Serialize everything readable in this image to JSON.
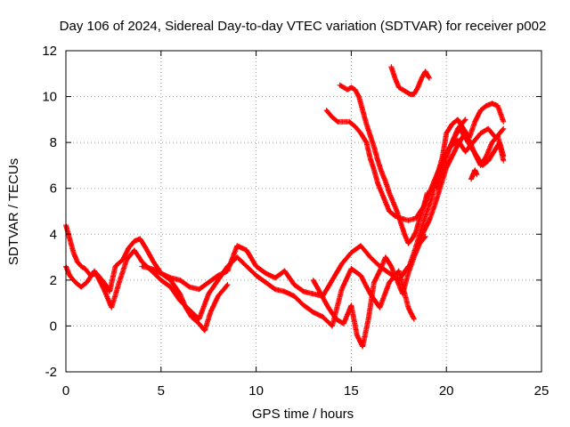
{
  "chart_data": {
    "type": "scatter",
    "title": "Day 106 of 2024, Sidereal Day-to-day VTEC variation (SDTVAR) for receiver p002",
    "xlabel": "GPS time / hours",
    "ylabel": "SDTVAR / TECUs",
    "xlim": [
      0,
      25
    ],
    "ylim": [
      -2,
      12
    ],
    "xticks": [
      "0",
      "5",
      "10",
      "15",
      "20",
      "25"
    ],
    "yticks": [
      "-2",
      "0",
      "2",
      "4",
      "6",
      "8",
      "10",
      "12"
    ],
    "grid": true,
    "marker": "+",
    "marker_color": "#ff0000",
    "series": [
      {
        "x": [
          0.0,
          0.2,
          0.4,
          0.6,
          0.8,
          1.0,
          1.3,
          1.6,
          2.0,
          2.3,
          2.6,
          3.0,
          3.3,
          3.6,
          3.9,
          4.2,
          4.6,
          5.0,
          5.5,
          6.0,
          6.5,
          7.0,
          7.5,
          8.0,
          8.5,
          9.0,
          9.5,
          10.0,
          10.5,
          11.0,
          11.5,
          12.0,
          12.5,
          13.0,
          13.5,
          14.0,
          14.5,
          15.0,
          15.5,
          16.0,
          16.5,
          17.0,
          17.5,
          18.0
        ],
        "y": [
          4.4,
          3.8,
          3.2,
          2.8,
          2.6,
          2.5,
          2.2,
          2.3,
          1.9,
          1.5,
          2.6,
          2.9,
          3.4,
          3.7,
          3.8,
          3.4,
          2.8,
          2.3,
          2.1,
          2.0,
          1.7,
          1.6,
          1.9,
          2.2,
          2.4,
          3.5,
          3.3,
          2.6,
          2.3,
          2.1,
          2.4,
          1.8,
          1.5,
          1.4,
          1.3,
          2.0,
          2.7,
          3.2,
          3.5,
          3.0,
          2.6,
          2.3,
          2.0,
          2.6
        ]
      },
      {
        "x": [
          0.0,
          0.2,
          0.5,
          0.8,
          1.1,
          1.5,
          2.0,
          2.4,
          2.8,
          3.2,
          3.6,
          4.0,
          4.5,
          5.0,
          5.5,
          6.0,
          6.5,
          7.0,
          7.5,
          8.0,
          8.5,
          9.0,
          9.5,
          10.0,
          10.5,
          11.0,
          11.5,
          12.0,
          12.5,
          13.0,
          13.5,
          14.0,
          14.5,
          15.0,
          15.5,
          16.0,
          16.5,
          17.0,
          17.5,
          18.0,
          18.3
        ],
        "y": [
          2.6,
          2.2,
          1.9,
          1.7,
          1.9,
          2.4,
          1.6,
          0.8,
          1.9,
          2.9,
          3.3,
          2.8,
          2.4,
          2.0,
          1.7,
          1.1,
          0.7,
          0.3,
          1.4,
          2.0,
          2.6,
          3.0,
          2.6,
          2.2,
          1.9,
          1.6,
          1.5,
          1.3,
          0.9,
          0.6,
          0.4,
          0.0,
          1.6,
          2.5,
          2.2,
          1.4,
          0.8,
          1.9,
          2.4,
          0.8,
          0.3
        ]
      },
      {
        "x": [
          4.0,
          4.5,
          5.0,
          5.5,
          6.0,
          6.3,
          6.6,
          7.0,
          7.3,
          7.6,
          8.0,
          8.5
        ],
        "y": [
          2.6,
          2.5,
          2.3,
          2.0,
          1.4,
          0.8,
          0.4,
          0.1,
          -0.2,
          0.6,
          1.3,
          1.8
        ]
      },
      {
        "x": [
          13.0,
          13.4,
          13.8,
          14.2,
          14.6,
          15.0,
          15.3,
          15.6,
          15.9,
          16.2,
          16.5,
          16.8,
          17.1,
          17.4,
          17.7,
          18.0,
          18.3,
          18.6,
          18.9
        ],
        "y": [
          2.0,
          1.4,
          0.8,
          0.3,
          0.1,
          0.9,
          -0.4,
          -0.9,
          0.3,
          1.9,
          2.4,
          3.0,
          2.6,
          2.0,
          1.4,
          2.3,
          3.0,
          3.6,
          3.9
        ]
      },
      {
        "x": [
          13.7,
          14.0,
          14.3,
          14.6,
          14.9,
          15.2,
          15.5,
          15.8,
          16.0,
          16.2,
          16.4,
          16.6,
          16.8,
          17.0,
          17.3,
          17.6,
          18.0,
          18.4,
          18.8,
          19.2,
          19.6,
          20.0,
          20.3,
          20.6,
          21.0
        ],
        "y": [
          9.4,
          9.1,
          8.9,
          8.9,
          8.9,
          8.7,
          8.4,
          8.0,
          7.3,
          6.8,
          6.2,
          5.8,
          5.4,
          5.0,
          4.8,
          4.7,
          4.6,
          4.7,
          5.2,
          6.0,
          6.8,
          7.5,
          8.0,
          8.6,
          9.0
        ]
      },
      {
        "x": [
          14.4,
          14.6,
          14.8,
          15.0,
          15.2,
          15.4,
          15.6,
          15.8,
          16.0,
          16.2,
          16.4,
          16.6,
          16.8,
          17.0,
          17.2,
          17.4,
          17.6,
          17.8,
          18.0,
          18.2,
          18.4,
          18.6,
          18.8,
          19.0
        ],
        "y": [
          10.5,
          10.4,
          10.3,
          10.4,
          10.3,
          10.0,
          9.4,
          8.8,
          8.3,
          7.8,
          7.2,
          6.7,
          6.3,
          5.8,
          5.4,
          5.0,
          4.5,
          4.0,
          3.6,
          3.8,
          4.1,
          4.7,
          5.2,
          5.8
        ]
      },
      {
        "x": [
          17.1,
          17.3,
          17.5,
          17.7,
          17.9,
          18.1,
          18.3,
          18.5,
          18.7,
          18.9,
          19.1
        ],
        "y": [
          11.3,
          10.8,
          10.4,
          10.3,
          10.2,
          10.1,
          10.1,
          10.4,
          10.8,
          11.1,
          10.8
        ]
      },
      {
        "x": [
          18.0,
          18.3,
          18.6,
          18.9,
          19.2,
          19.5,
          19.8,
          20.0,
          20.3,
          20.6,
          20.9,
          21.2,
          21.5,
          21.8,
          22.1,
          22.4,
          22.7,
          23.0
        ],
        "y": [
          2.5,
          3.2,
          4.0,
          4.8,
          5.5,
          6.5,
          7.4,
          8.4,
          8.8,
          9.0,
          8.6,
          8.2,
          8.9,
          9.4,
          9.6,
          9.7,
          9.6,
          8.9
        ]
      },
      {
        "x": [
          18.5,
          18.8,
          19.1,
          19.4,
          19.7,
          20.0,
          20.3,
          20.6,
          20.9,
          21.2,
          21.5,
          21.8,
          22.1,
          22.4,
          22.7,
          23.0
        ],
        "y": [
          3.5,
          4.1,
          4.6,
          5.3,
          6.1,
          6.9,
          7.4,
          7.9,
          8.3,
          8.1,
          7.5,
          7.0,
          7.4,
          8.0,
          8.3,
          7.2
        ]
      },
      {
        "x": [
          19.5,
          19.8,
          20.1,
          20.4,
          20.7,
          21.0,
          21.3,
          21.6,
          21.9,
          22.2,
          22.5,
          22.8,
          23.0
        ],
        "y": [
          6.0,
          6.8,
          7.6,
          8.2,
          8.6,
          8.2,
          7.8,
          7.4,
          7.0,
          7.2,
          7.6,
          8.0,
          7.4
        ]
      },
      {
        "x": [
          21.3,
          21.4,
          21.5,
          21.6
        ],
        "y": [
          6.4,
          6.6,
          6.8,
          6.6
        ]
      },
      {
        "x": [
          19.8,
          20.2,
          20.6,
          21.0,
          21.4,
          21.8,
          22.2,
          22.6,
          23.0
        ],
        "y": [
          7.3,
          7.8,
          8.1,
          7.6,
          8.0,
          8.4,
          8.6,
          8.2,
          8.6
        ]
      }
    ]
  }
}
